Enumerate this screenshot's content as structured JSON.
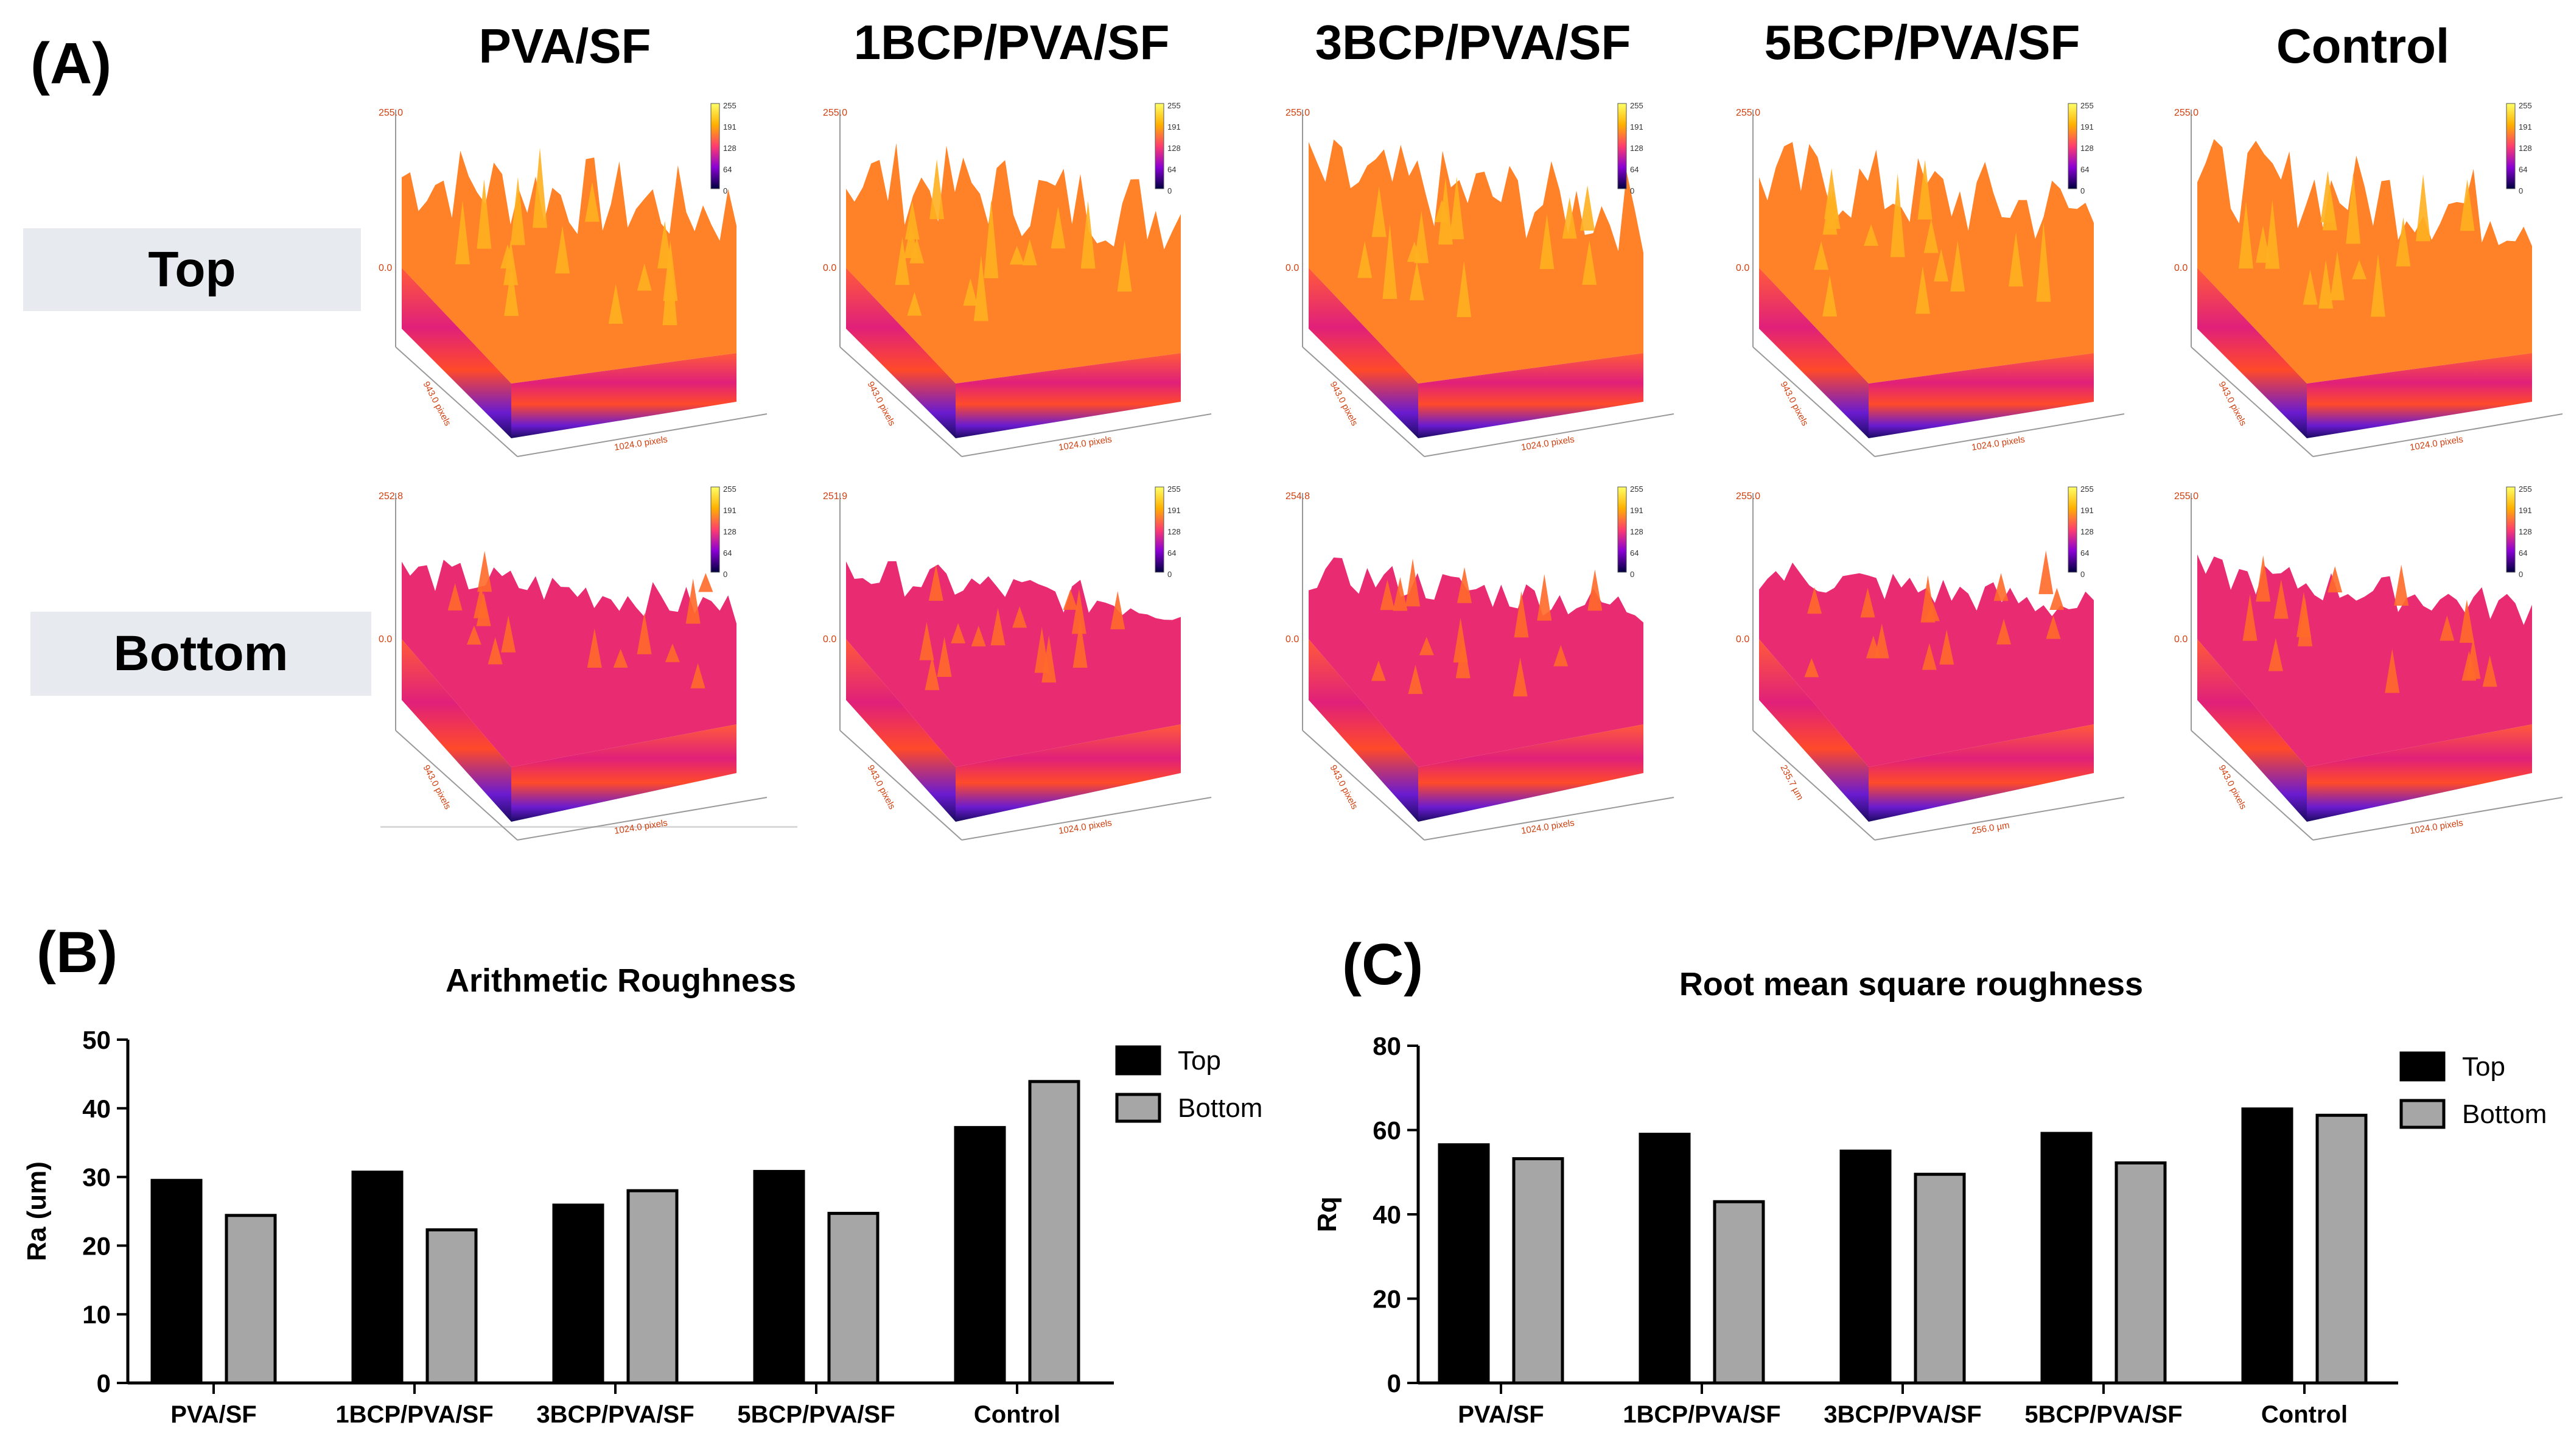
{
  "panels": {
    "a": "(A)",
    "b": "(B)",
    "c": "(C)"
  },
  "columns": [
    "PVA/SF",
    "1BCP/PVA/SF",
    "3BCP/PVA/SF",
    "5BCP/PVA/SF",
    "Control"
  ],
  "rows": [
    "Top",
    "Bottom"
  ],
  "surface_plots": [
    {
      "max": "255.0",
      "min": "0.0",
      "y_axis": "943.0 pixels",
      "x_axis": "1024.0 pixels"
    },
    {
      "max": "255.0",
      "min": "0.0",
      "y_axis": "943.0 pixels",
      "x_axis": "1024.0 pixels"
    },
    {
      "max": "255.0",
      "min": "0.0",
      "y_axis": "943.0 pixels",
      "x_axis": "1024.0 pixels"
    },
    {
      "max": "255.0",
      "min": "0.0",
      "y_axis": "943.0 pixels",
      "x_axis": "1024.0 pixels"
    },
    {
      "max": "255.0",
      "min": "0.0",
      "y_axis": "943.0 pixels",
      "x_axis": "1024.0 pixels"
    },
    {
      "max": "252.8",
      "min": "0.0",
      "y_axis": "943.0 pixels",
      "x_axis": "1024.0 pixels"
    },
    {
      "max": "251.9",
      "min": "0.0",
      "y_axis": "943.0 pixels",
      "x_axis": "1024.0 pixels"
    },
    {
      "max": "254.8",
      "min": "0.0",
      "y_axis": "943.0 pixels",
      "x_axis": "1024.0 pixels"
    },
    {
      "max": "255.0",
      "min": "0.0",
      "y_axis": "235.7 µm",
      "x_axis": "256.0 µm"
    },
    {
      "max": "255.0",
      "min": "0.0",
      "y_axis": "943.0 pixels",
      "x_axis": "1024.0 pixels"
    }
  ],
  "colorbar_ticks": [
    "255",
    "191",
    "128",
    "64",
    "0"
  ],
  "chart_data": [
    {
      "type": "bar",
      "title": "Arithmetic Roughness",
      "ylabel": "Ra (um)",
      "xlabel": "",
      "categories": [
        "PVA/SF",
        "1BCP/PVA/SF",
        "3BCP/PVA/SF",
        "5BCP/PVA/SF",
        "Control"
      ],
      "series": [
        {
          "name": "Top",
          "color": "#000000",
          "values": [
            29.5,
            30.7,
            25.9,
            30.8,
            37.2
          ]
        },
        {
          "name": "Bottom",
          "color": "#a6a6a6",
          "values": [
            24.4,
            22.3,
            28.0,
            24.7,
            43.9
          ]
        }
      ],
      "ylim": [
        0,
        50
      ],
      "yticks": [
        0,
        10,
        20,
        30,
        40,
        50
      ],
      "legend": "top-right"
    },
    {
      "type": "bar",
      "title": "Root mean square roughness",
      "ylabel": "Rq",
      "xlabel": "",
      "categories": [
        "PVA/SF",
        "1BCP/PVA/SF",
        "3BCP/PVA/SF",
        "5BCP/PVA/SF",
        "Control"
      ],
      "series": [
        {
          "name": "Top",
          "color": "#000000",
          "values": [
            56.5,
            59.0,
            55.0,
            59.2,
            65.0
          ]
        },
        {
          "name": "Bottom",
          "color": "#a6a6a6",
          "values": [
            53.2,
            43.0,
            49.5,
            52.2,
            63.5
          ]
        }
      ],
      "ylim": [
        0,
        80
      ],
      "yticks": [
        0,
        20,
        40,
        60,
        80
      ],
      "legend": "top-right"
    }
  ]
}
